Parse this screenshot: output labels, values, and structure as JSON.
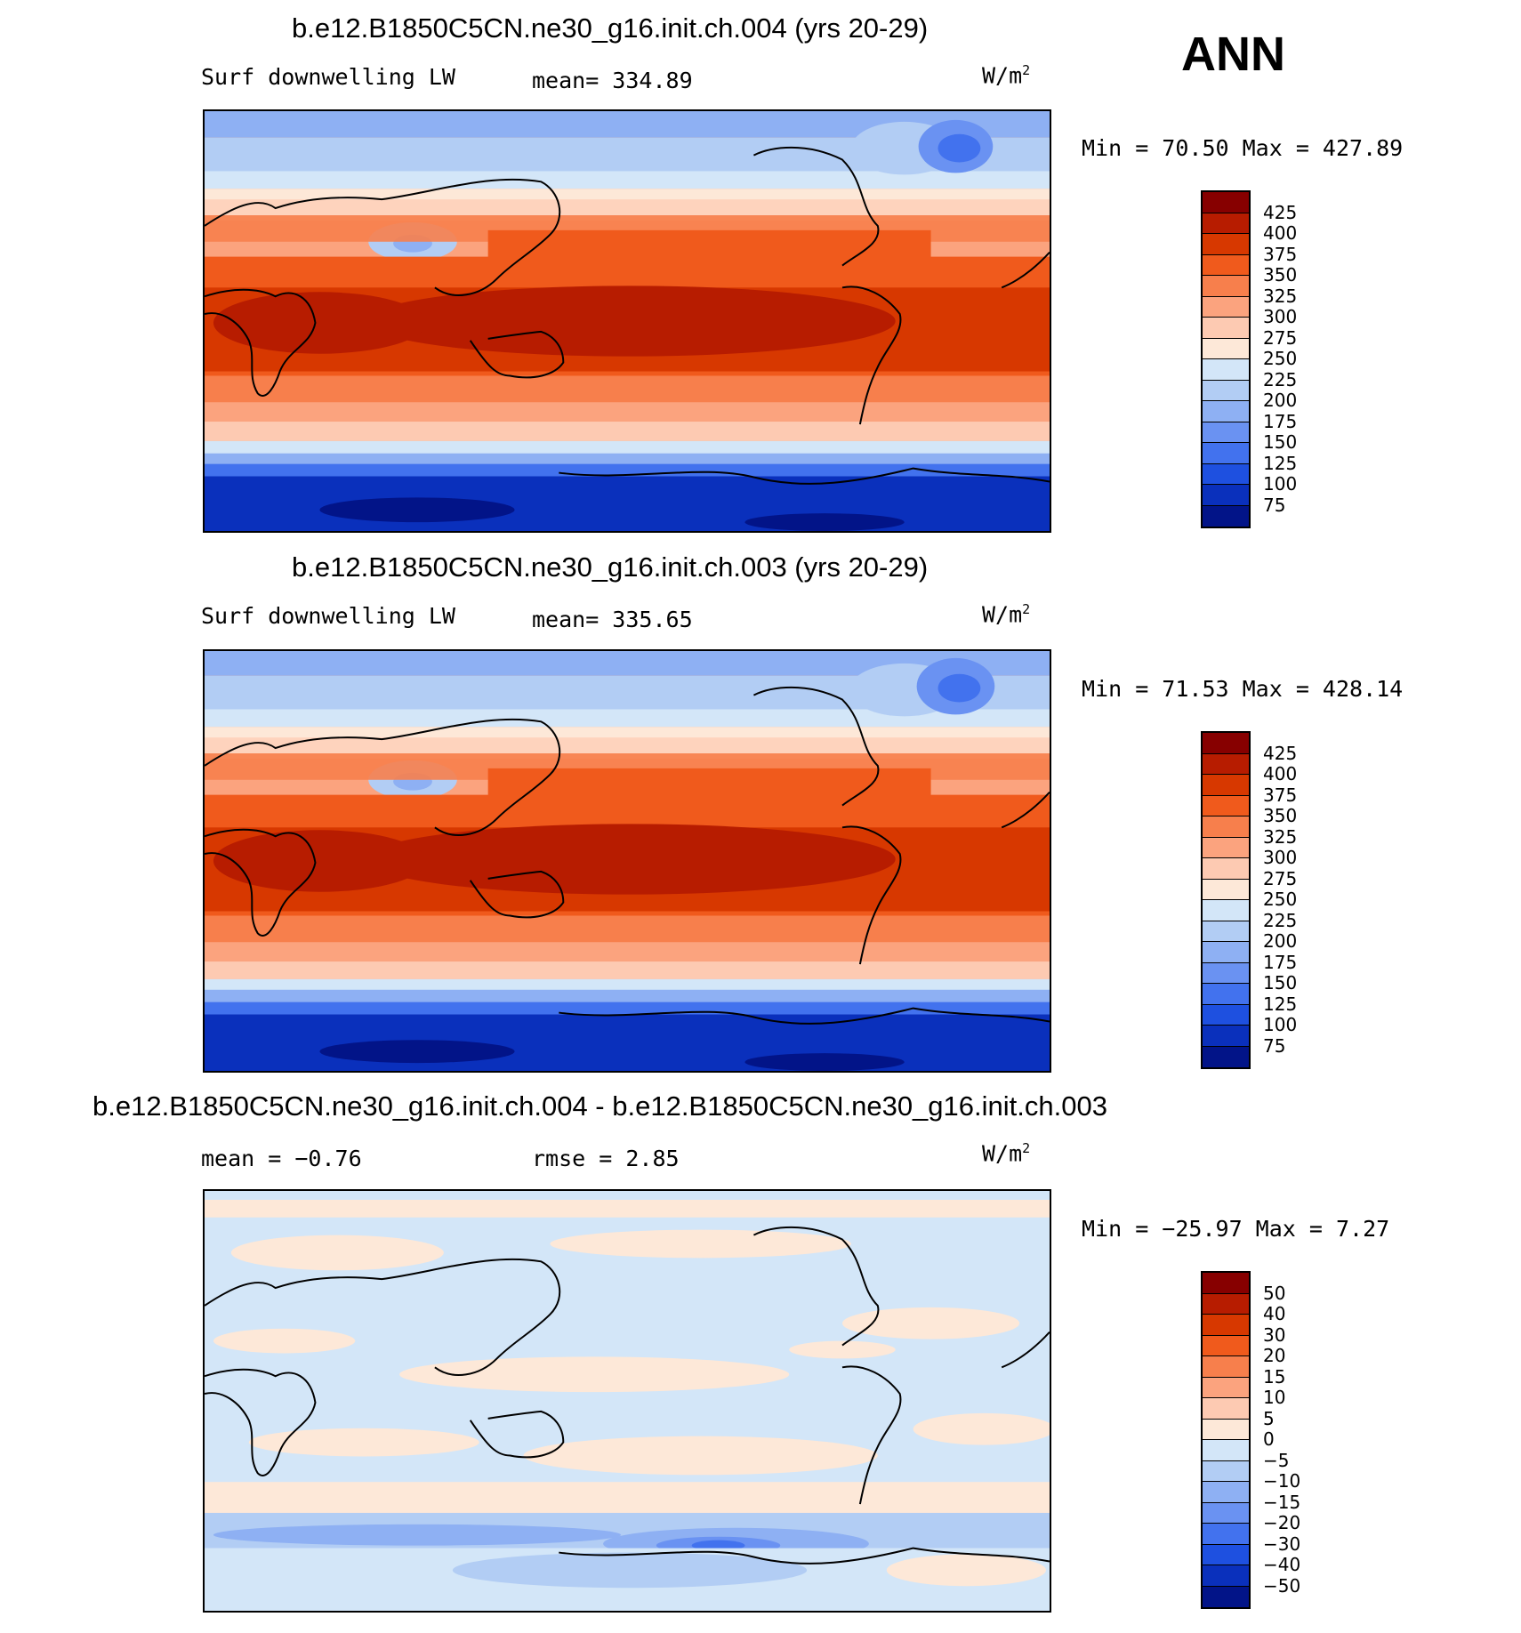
{
  "season": "ANN",
  "panels": [
    {
      "title": "b.e12.B1850C5CN.ne30_g16.init.ch.004 (yrs 20-29)",
      "variable": "Surf downwelling LW",
      "stat1": "mean= 334.89",
      "stat2": "",
      "units": "W/m",
      "units_sup": "2",
      "minmax": "Min =   70.50 Max = 427.89",
      "levels": [
        "425",
        "400",
        "375",
        "350",
        "325",
        "300",
        "275",
        "250",
        "225",
        "200",
        "175",
        "150",
        "125",
        "100",
        "75"
      ],
      "palette": [
        "#870000",
        "#b71c00",
        "#d73800",
        "#f05a1c",
        "#f77f4c",
        "#fba37e",
        "#fdcab2",
        "#fde8d8",
        "#d3e6f8",
        "#b2cdf4",
        "#8eb0f3",
        "#6a92f2",
        "#4272ee",
        "#1e50e0",
        "#0a30bc",
        "#021488"
      ]
    },
    {
      "title": "b.e12.B1850C5CN.ne30_g16.init.ch.003 (yrs 20-29)",
      "variable": "Surf downwelling LW",
      "stat1": "mean= 335.65",
      "stat2": "",
      "units": "W/m",
      "units_sup": "2",
      "minmax": "Min =   71.53 Max = 428.14",
      "levels": [
        "425",
        "400",
        "375",
        "350",
        "325",
        "300",
        "275",
        "250",
        "225",
        "200",
        "175",
        "150",
        "125",
        "100",
        "75"
      ],
      "palette": [
        "#870000",
        "#b71c00",
        "#d73800",
        "#f05a1c",
        "#f77f4c",
        "#fba37e",
        "#fdcab2",
        "#fde8d8",
        "#d3e6f8",
        "#b2cdf4",
        "#8eb0f3",
        "#6a92f2",
        "#4272ee",
        "#1e50e0",
        "#0a30bc",
        "#021488"
      ]
    },
    {
      "title": "b.e12.B1850C5CN.ne30_g16.init.ch.004 - b.e12.B1850C5CN.ne30_g16.init.ch.003",
      "variable": "",
      "stat1": "mean =   −0.76",
      "stat2": "rmse =    2.85",
      "units": "W/m",
      "units_sup": "2",
      "minmax": "Min = −25.97 Max =    7.27",
      "levels": [
        "50",
        "40",
        "30",
        "20",
        "15",
        "10",
        "5",
        "0",
        "−5",
        "−10",
        "−15",
        "−20",
        "−30",
        "−40",
        "−50"
      ],
      "palette": [
        "#870000",
        "#b71c00",
        "#d73800",
        "#f05a1c",
        "#f77f4c",
        "#fba37e",
        "#fdcab2",
        "#fde8d8",
        "#d3e6f8",
        "#b2cdf4",
        "#8eb0f3",
        "#6a92f2",
        "#4272ee",
        "#1e50e0",
        "#0a30bc",
        "#021488"
      ]
    }
  ]
}
